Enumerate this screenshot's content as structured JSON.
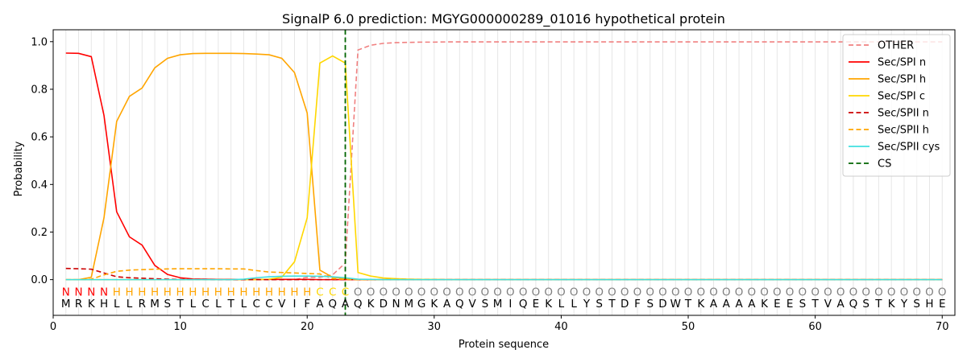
{
  "chart_data": {
    "type": "line",
    "title": "SignalP 6.0 prediction: MGYG000000289_01016 hypothetical protein",
    "xlabel": "Protein sequence",
    "ylabel": "Probability",
    "xlim": [
      0,
      71
    ],
    "ylim": [
      -0.15,
      1.05
    ],
    "x_ticks": [
      0,
      10,
      20,
      30,
      40,
      50,
      60,
      70
    ],
    "y_ticks": [
      0.0,
      0.2,
      0.4,
      0.6,
      0.8,
      1.0
    ],
    "x_tick_labels": [
      "0",
      "10",
      "20",
      "30",
      "40",
      "50",
      "60",
      "70"
    ],
    "y_tick_labels": [
      "0.0",
      "0.2",
      "0.4",
      "0.6",
      "0.8",
      "1.0"
    ],
    "grid": "vertical lines at each residue",
    "legend_position": "top-right",
    "sequence": [
      "M",
      "R",
      "K",
      "H",
      "L",
      "L",
      "R",
      "M",
      "S",
      "T",
      "L",
      "C",
      "L",
      "T",
      "L",
      "C",
      "C",
      "V",
      "I",
      "F",
      "A",
      "Q",
      "A",
      "Q",
      "K",
      "D",
      "N",
      "M",
      "G",
      "K",
      "A",
      "Q",
      "V",
      "S",
      "M",
      "I",
      "Q",
      "E",
      "K",
      "L",
      "L",
      "Y",
      "S",
      "T",
      "D",
      "F",
      "S",
      "D",
      "W",
      "T",
      "K",
      "A",
      "A",
      "A",
      "A",
      "K",
      "E",
      "E",
      "S",
      "T",
      "V",
      "A",
      "Q",
      "S",
      "T",
      "K",
      "Y",
      "S",
      "H",
      "E"
    ],
    "labels": [
      "N",
      "N",
      "N",
      "N",
      "H",
      "H",
      "H",
      "H",
      "H",
      "H",
      "H",
      "H",
      "H",
      "H",
      "H",
      "H",
      "H",
      "H",
      "H",
      "H",
      "C",
      "C",
      "C",
      "O",
      "O",
      "O",
      "O",
      "O",
      "O",
      "O",
      "O",
      "O",
      "O",
      "O",
      "O",
      "O",
      "O",
      "O",
      "O",
      "O",
      "O",
      "O",
      "O",
      "O",
      "O",
      "O",
      "O",
      "O",
      "O",
      "O",
      "O",
      "O",
      "O",
      "O",
      "O",
      "O",
      "O",
      "O",
      "O",
      "O",
      "O",
      "O",
      "O",
      "O",
      "O",
      "O",
      "O",
      "O",
      "O",
      "O"
    ],
    "label_colors": {
      "N": "#ff0000",
      "H": "#ffa500",
      "C": "#ffd700",
      "O": "#808080"
    },
    "cleavage_site": 23,
    "series": [
      {
        "name": "OTHER",
        "color": "#f08080",
        "dash": true,
        "values": [
          0.0,
          0.0,
          0.0,
          0.0,
          0.0,
          0.0,
          0.0,
          0.0,
          0.0,
          0.0,
          0.0,
          0.0,
          0.0,
          0.0,
          0.0,
          0.0,
          0.0,
          0.0,
          0.0,
          0.01,
          0.01,
          0.02,
          0.07,
          0.965,
          0.985,
          0.993,
          0.996,
          0.997,
          0.998,
          0.998,
          0.999,
          0.999,
          0.999,
          0.999,
          0.999,
          0.999,
          0.999,
          0.999,
          0.999,
          0.999,
          0.999,
          0.999,
          0.999,
          0.999,
          0.999,
          0.999,
          0.999,
          0.999,
          0.999,
          0.999,
          0.999,
          0.999,
          0.999,
          0.999,
          0.999,
          0.999,
          0.999,
          0.999,
          0.999,
          0.999,
          0.999,
          0.999,
          0.999,
          0.999,
          0.999,
          0.999,
          0.999,
          0.999,
          0.999,
          0.999
        ]
      },
      {
        "name": "Sec/SPI n",
        "color": "#ff0000",
        "dash": false,
        "values": [
          0.952,
          0.951,
          0.937,
          0.69,
          0.285,
          0.18,
          0.145,
          0.06,
          0.022,
          0.008,
          0.003,
          0.002,
          0.001,
          0.001,
          0.001,
          0.001,
          0.001,
          0.001,
          0.001,
          0.001,
          0.0,
          0.0,
          0.0,
          0.0,
          0.0,
          0.0,
          0.0,
          0.0,
          0.0,
          0.0,
          0.0,
          0.0,
          0.0,
          0.0,
          0.0,
          0.0,
          0.0,
          0.0,
          0.0,
          0.0,
          0.0,
          0.0,
          0.0,
          0.0,
          0.0,
          0.0,
          0.0,
          0.0,
          0.0,
          0.0,
          0.0,
          0.0,
          0.0,
          0.0,
          0.0,
          0.0,
          0.0,
          0.0,
          0.0,
          0.0,
          0.0,
          0.0,
          0.0,
          0.0,
          0.0,
          0.0,
          0.0,
          0.0,
          0.0,
          0.0
        ]
      },
      {
        "name": "Sec/SPI h",
        "color": "#ffa500",
        "dash": false,
        "values": [
          0.0,
          0.0,
          0.01,
          0.26,
          0.665,
          0.77,
          0.805,
          0.89,
          0.93,
          0.945,
          0.95,
          0.951,
          0.951,
          0.951,
          0.95,
          0.948,
          0.945,
          0.93,
          0.87,
          0.7,
          0.04,
          0.01,
          0.005,
          0.0,
          0.0,
          0.0,
          0.0,
          0.0,
          0.0,
          0.0,
          0.0,
          0.0,
          0.0,
          0.0,
          0.0,
          0.0,
          0.0,
          0.0,
          0.0,
          0.0,
          0.0,
          0.0,
          0.0,
          0.0,
          0.0,
          0.0,
          0.0,
          0.0,
          0.0,
          0.0,
          0.0,
          0.0,
          0.0,
          0.0,
          0.0,
          0.0,
          0.0,
          0.0,
          0.0,
          0.0,
          0.0,
          0.0,
          0.0,
          0.0,
          0.0,
          0.0,
          0.0,
          0.0,
          0.0,
          0.0
        ]
      },
      {
        "name": "Sec/SPI c",
        "color": "#ffd700",
        "dash": false,
        "values": [
          0.0,
          0.0,
          0.0,
          0.0,
          0.0,
          0.0,
          0.0,
          0.0,
          0.0,
          0.0,
          0.0,
          0.0,
          0.0,
          0.0,
          0.0,
          0.0,
          0.002,
          0.01,
          0.075,
          0.26,
          0.91,
          0.94,
          0.91,
          0.03,
          0.015,
          0.007,
          0.004,
          0.002,
          0.001,
          0.001,
          0.0,
          0.0,
          0.0,
          0.0,
          0.0,
          0.0,
          0.0,
          0.0,
          0.0,
          0.0,
          0.0,
          0.0,
          0.0,
          0.0,
          0.0,
          0.0,
          0.0,
          0.0,
          0.0,
          0.0,
          0.0,
          0.0,
          0.0,
          0.0,
          0.0,
          0.0,
          0.0,
          0.0,
          0.0,
          0.0,
          0.0,
          0.0,
          0.0,
          0.0,
          0.0,
          0.0,
          0.0,
          0.0,
          0.0,
          0.0
        ]
      },
      {
        "name": "Sec/SPII n",
        "color": "#cc0000",
        "dash": true,
        "values": [
          0.047,
          0.046,
          0.044,
          0.028,
          0.012,
          0.008,
          0.006,
          0.004,
          0.002,
          0.001,
          0.001,
          0.001,
          0.0,
          0.0,
          0.0,
          0.0,
          0.0,
          0.0,
          0.0,
          0.0,
          0.0,
          0.0,
          0.0,
          0.0,
          0.0,
          0.0,
          0.0,
          0.0,
          0.0,
          0.0,
          0.0,
          0.0,
          0.0,
          0.0,
          0.0,
          0.0,
          0.0,
          0.0,
          0.0,
          0.0,
          0.0,
          0.0,
          0.0,
          0.0,
          0.0,
          0.0,
          0.0,
          0.0,
          0.0,
          0.0,
          0.0,
          0.0,
          0.0,
          0.0,
          0.0,
          0.0,
          0.0,
          0.0,
          0.0,
          0.0,
          0.0,
          0.0,
          0.0,
          0.0,
          0.0,
          0.0,
          0.0,
          0.0,
          0.0,
          0.0
        ]
      },
      {
        "name": "Sec/SPII h",
        "color": "#ffa500",
        "dash": true,
        "values": [
          0.0,
          0.0,
          0.002,
          0.02,
          0.035,
          0.04,
          0.042,
          0.044,
          0.045,
          0.046,
          0.046,
          0.046,
          0.046,
          0.045,
          0.045,
          0.038,
          0.032,
          0.03,
          0.028,
          0.026,
          0.024,
          0.004,
          0.001,
          0.0,
          0.0,
          0.0,
          0.0,
          0.0,
          0.0,
          0.0,
          0.0,
          0.0,
          0.0,
          0.0,
          0.0,
          0.0,
          0.0,
          0.0,
          0.0,
          0.0,
          0.0,
          0.0,
          0.0,
          0.0,
          0.0,
          0.0,
          0.0,
          0.0,
          0.0,
          0.0,
          0.0,
          0.0,
          0.0,
          0.0,
          0.0,
          0.0,
          0.0,
          0.0,
          0.0,
          0.0,
          0.0,
          0.0,
          0.0,
          0.0,
          0.0,
          0.0,
          0.0,
          0.0,
          0.0,
          0.0
        ]
      },
      {
        "name": "Sec/SPII cys",
        "color": "#40e0e0",
        "dash": false,
        "values": [
          0.0,
          0.0,
          0.0,
          0.0,
          0.0,
          0.0,
          0.0,
          0.0,
          0.0,
          0.0,
          0.0,
          0.0,
          0.0,
          0.0,
          0.002,
          0.008,
          0.012,
          0.014,
          0.015,
          0.015,
          0.014,
          0.012,
          0.008,
          0.002,
          0.001,
          0.0,
          0.0,
          0.0,
          0.0,
          0.0,
          0.0,
          0.0,
          0.0,
          0.0,
          0.0,
          0.0,
          0.0,
          0.0,
          0.0,
          0.0,
          0.0,
          0.0,
          0.0,
          0.0,
          0.0,
          0.0,
          0.0,
          0.0,
          0.0,
          0.0,
          0.0,
          0.0,
          0.0,
          0.0,
          0.0,
          0.0,
          0.0,
          0.0,
          0.0,
          0.0,
          0.0,
          0.0,
          0.0,
          0.0,
          0.0,
          0.0,
          0.0,
          0.0,
          0.0,
          0.0
        ]
      }
    ],
    "cs_legend": {
      "name": "CS",
      "color": "#006400",
      "dash": true
    }
  }
}
